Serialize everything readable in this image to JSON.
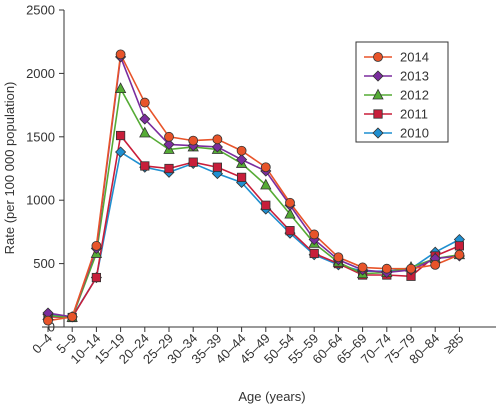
{
  "chart_data": {
    "type": "line",
    "xlabel": "Age (years)",
    "ylabel": "Rate (per 100 000 population)",
    "ylim": [
      0,
      2500
    ],
    "yticks": [
      0,
      500,
      1000,
      1500,
      2000,
      2500
    ],
    "legend_position": "top-right",
    "grid": false,
    "categories": [
      "0–4",
      "5–9",
      "10–14",
      "15–19",
      "20–24",
      "25–29",
      "30–34",
      "35–39",
      "40–44",
      "45–49",
      "50–54",
      "55–59",
      "60–64",
      "65–69",
      "70–74",
      "75–79",
      "80–84",
      "≥85"
    ],
    "series": [
      {
        "name": "2014",
        "color": "#e8542a",
        "marker": "circle",
        "values": [
          50,
          80,
          640,
          2150,
          1770,
          1500,
          1470,
          1480,
          1390,
          1260,
          980,
          730,
          550,
          470,
          460,
          460,
          490,
          570
        ]
      },
      {
        "name": "2013",
        "color": "#7b2d9e",
        "marker": "diamond",
        "values": [
          110,
          80,
          620,
          2130,
          1640,
          1440,
          1430,
          1420,
          1320,
          1230,
          960,
          690,
          530,
          450,
          430,
          450,
          540,
          560
        ]
      },
      {
        "name": "2012",
        "color": "#55ab35",
        "marker": "triangle",
        "values": [
          90,
          75,
          580,
          1880,
          1530,
          1400,
          1420,
          1400,
          1290,
          1120,
          890,
          660,
          510,
          420,
          430,
          470,
          540,
          570
        ]
      },
      {
        "name": "2011",
        "color": "#c81e3a",
        "marker": "square",
        "values": [
          80,
          75,
          390,
          1510,
          1270,
          1250,
          1300,
          1260,
          1180,
          960,
          760,
          580,
          500,
          410,
          410,
          400,
          560,
          640
        ]
      },
      {
        "name": "2010",
        "color": "#1f8fd0",
        "marker": "diamond",
        "values": [
          100,
          80,
          390,
          1380,
          1260,
          1220,
          1290,
          1210,
          1140,
          930,
          740,
          570,
          490,
          440,
          440,
          460,
          590,
          690
        ]
      }
    ]
  }
}
